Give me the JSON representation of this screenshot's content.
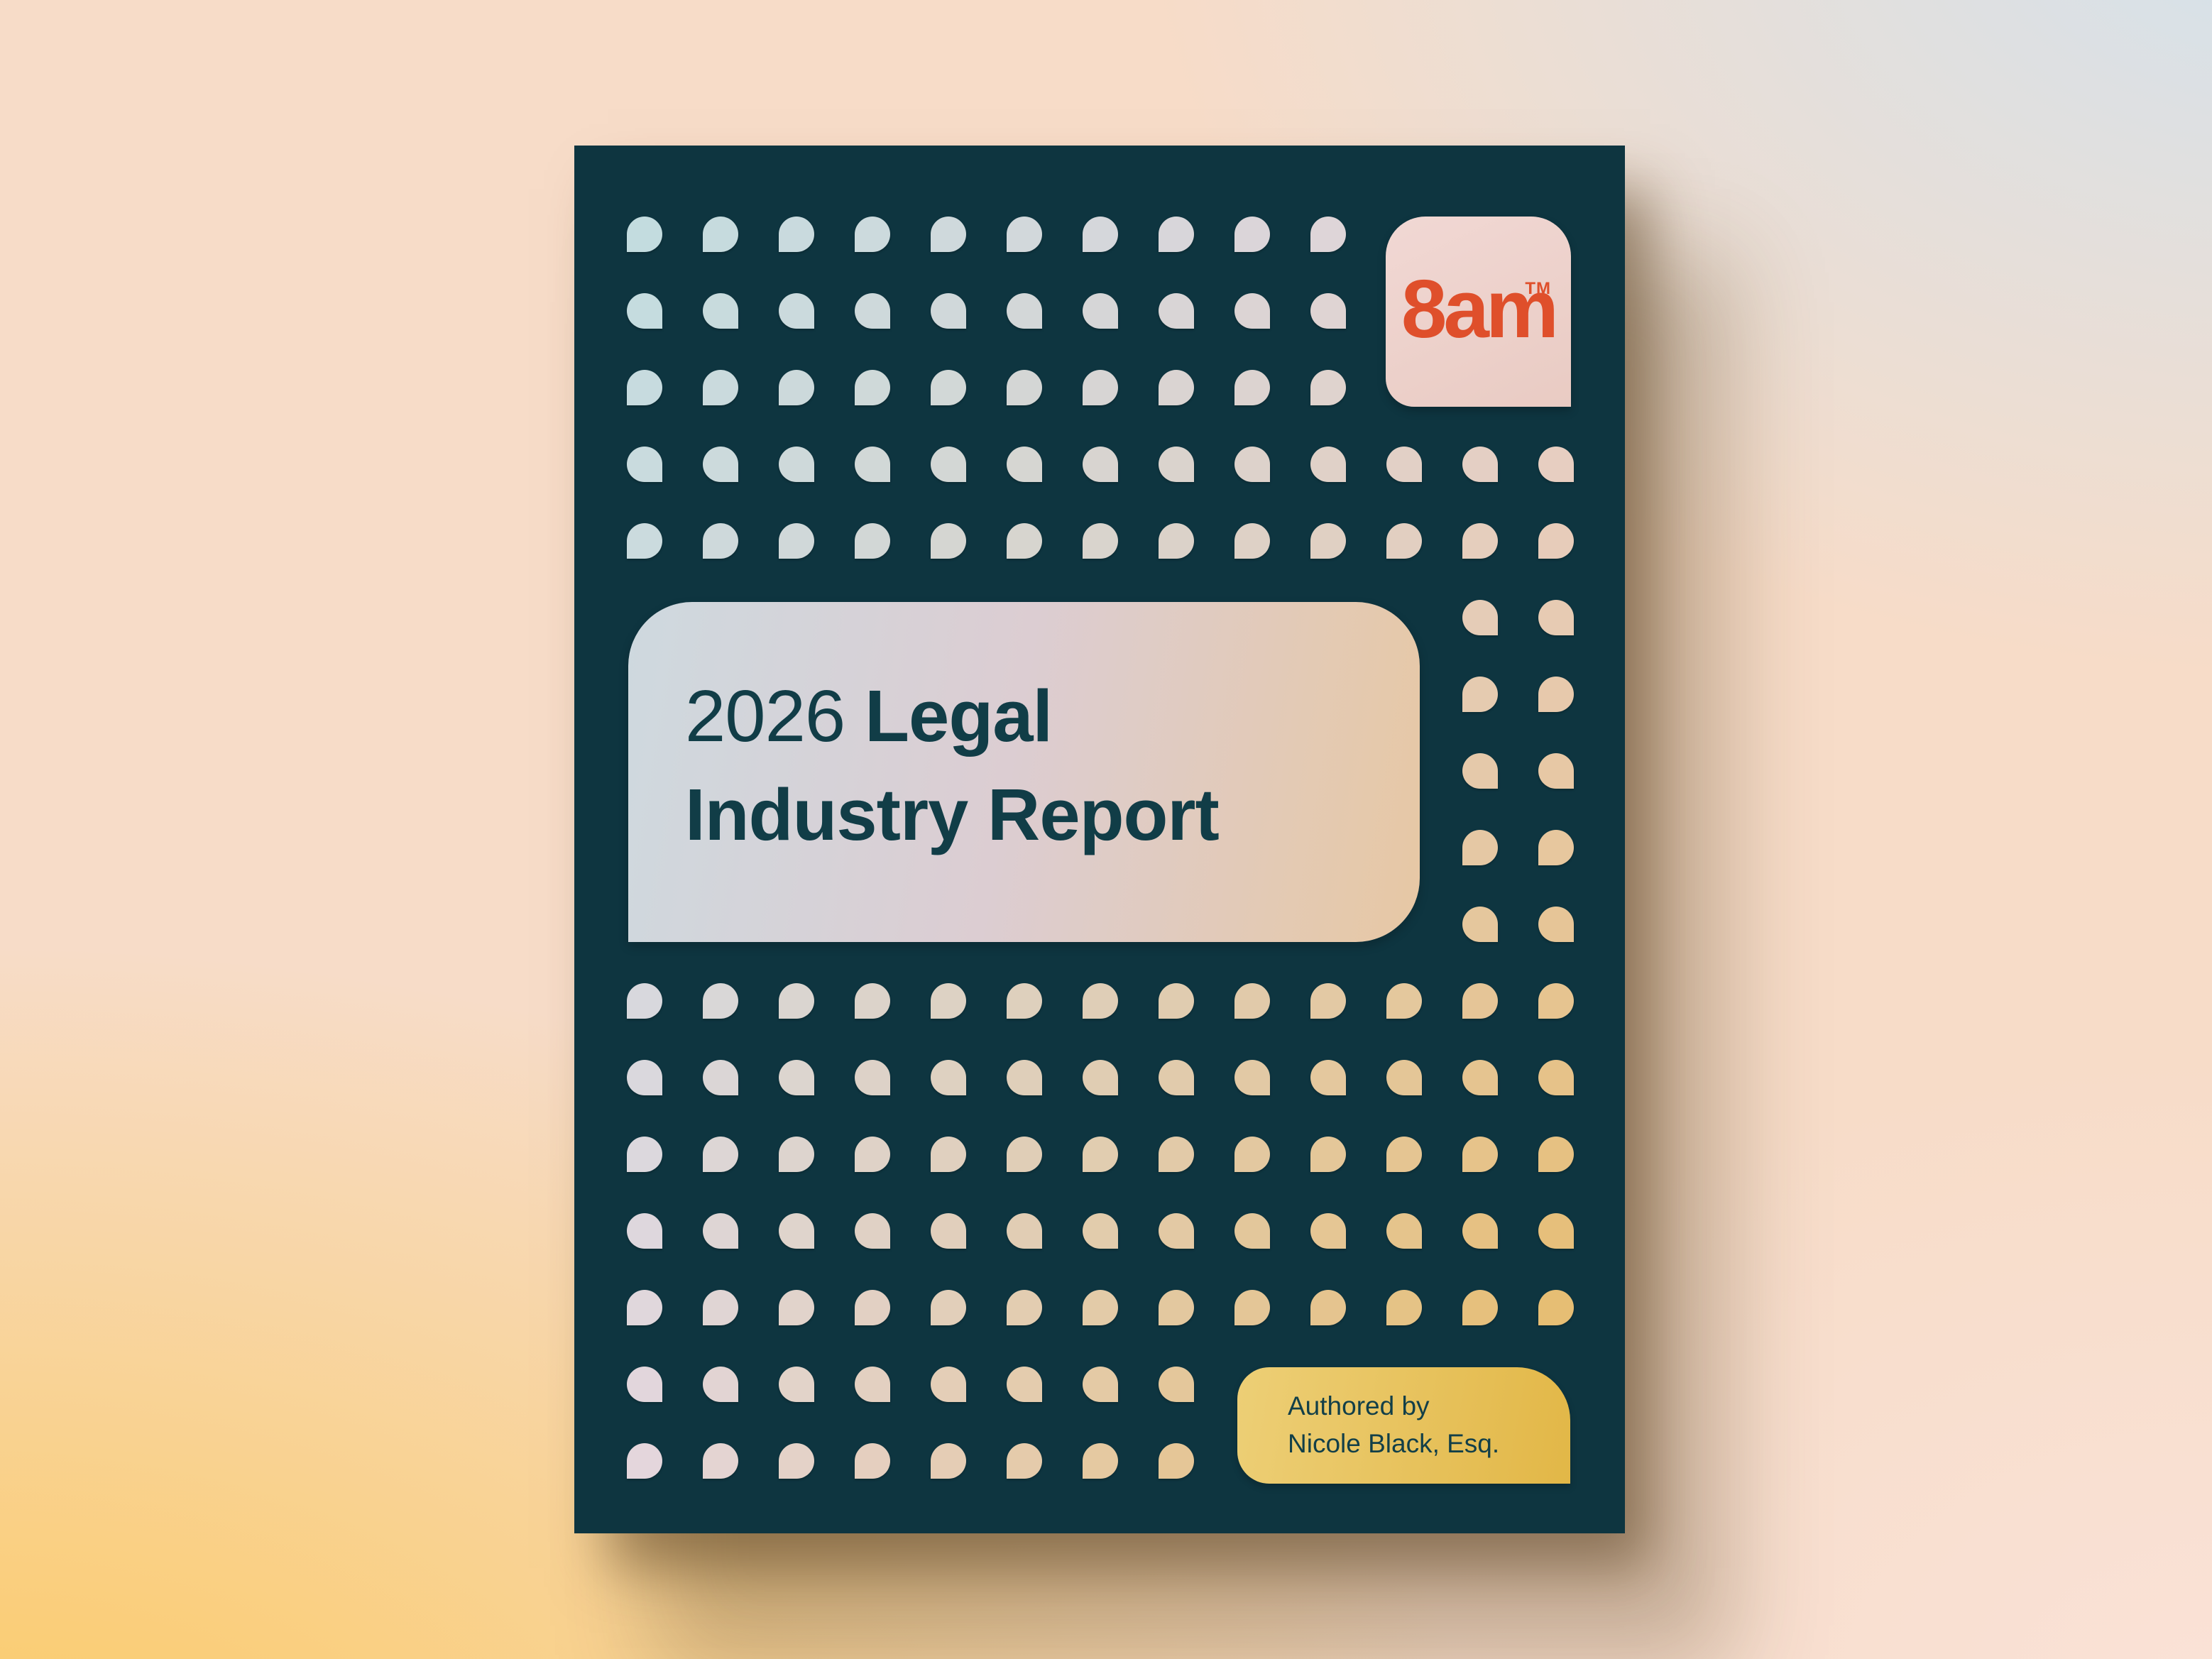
{
  "page": {
    "background_corner_colors": {
      "top_left": "#F7DCC8",
      "top_right": "#D3E2ED",
      "bottom_left": "#FBC95E",
      "bottom_right": "#FAE2D7"
    }
  },
  "book": {
    "cover_color": "#0E3540",
    "logo": {
      "wordmark": "8am",
      "trademark": "TM",
      "text_color": "#DF4F2B",
      "box_gradient": [
        "#F1D8D4",
        "#E9CBC3"
      ]
    },
    "title": {
      "year": "2026",
      "line1_bold": "Legal",
      "line2": "Industry Report",
      "text_color": "#113D47",
      "panel_gradient": [
        "#CED9DF",
        "#DCCDD2",
        "#E7C8A4"
      ]
    },
    "author": {
      "line1": "Authored by",
      "line2": "Nicole Black, Esq.",
      "text_color": "#123F48",
      "box_gradient": [
        "#EDCF76",
        "#E2B747"
      ]
    },
    "dots": {
      "rows": 17,
      "cols": 13,
      "corner_colors": {
        "top_left": "#C3DCDF",
        "top_right": "#E7D2D6",
        "bottom_left": "#E4D6DC",
        "bottom_right": "#E6BB66"
      }
    }
  }
}
